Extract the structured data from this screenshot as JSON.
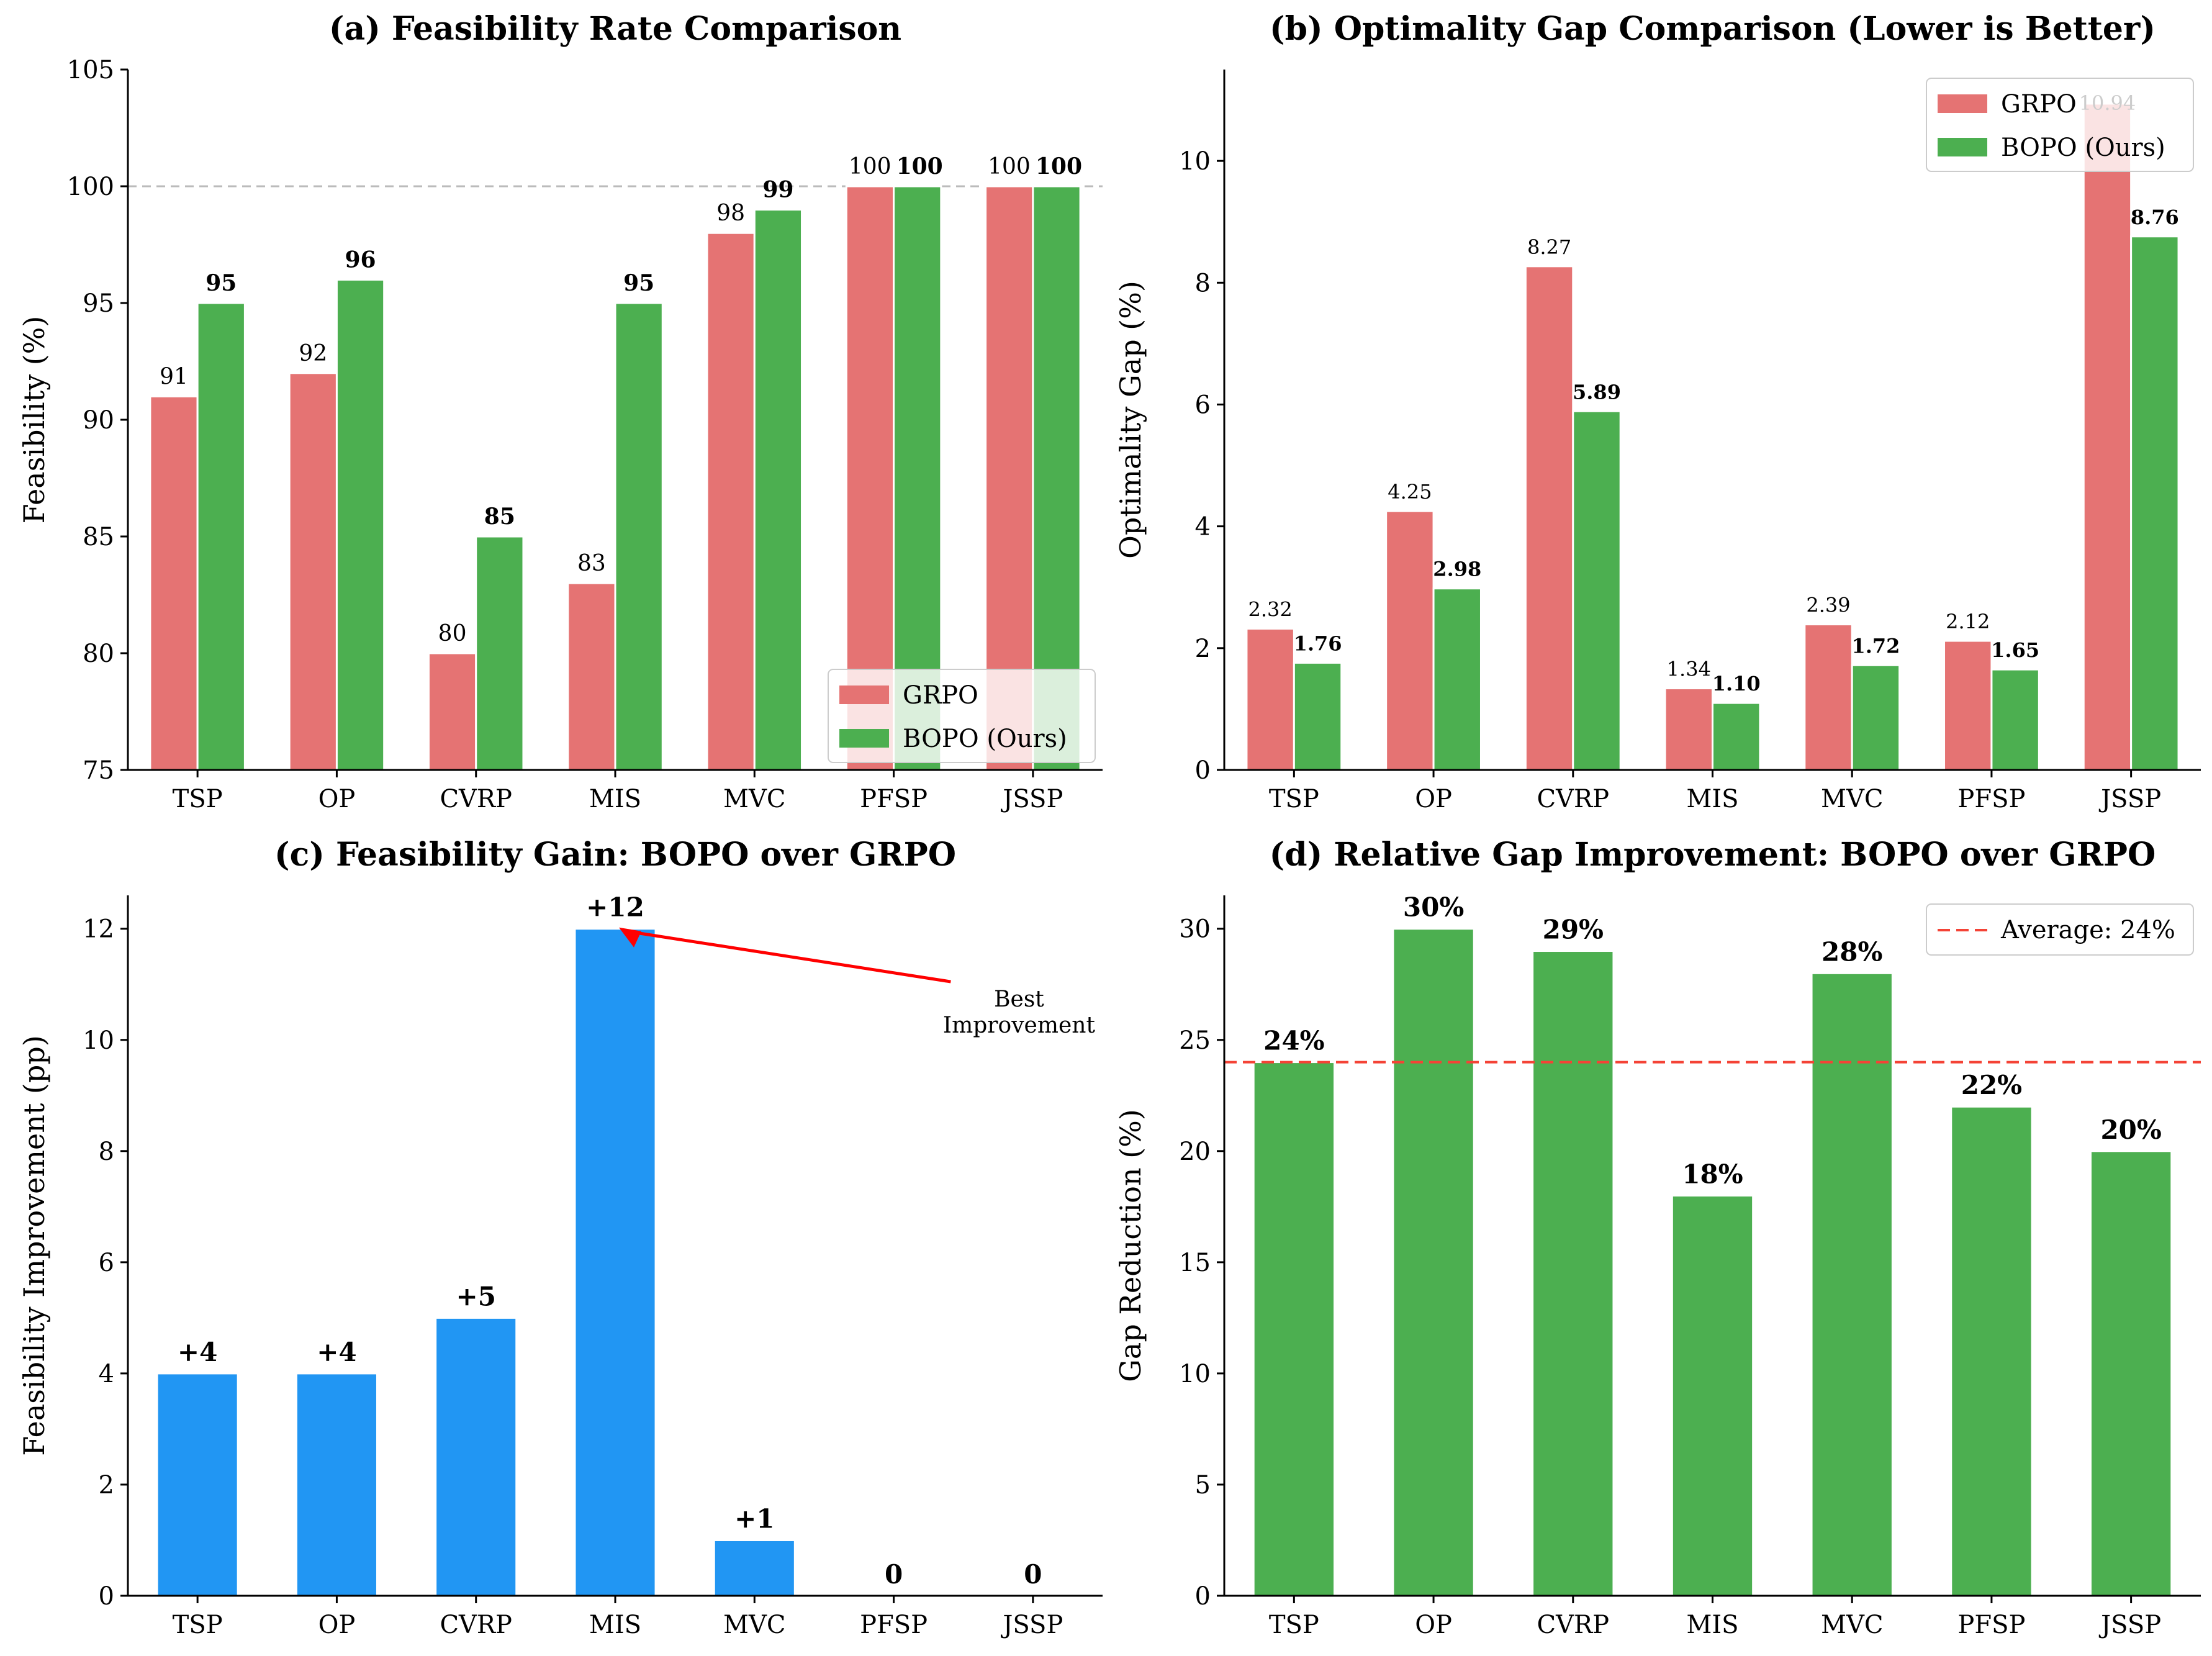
{
  "chart_data": [
    {
      "id": "a",
      "type": "bar",
      "title": "(a) Feasibility Rate Comparison",
      "xlabel": "",
      "ylabel": "Feasibility (%)",
      "ylim": [
        75,
        105
      ],
      "yticks": [
        75,
        80,
        85,
        90,
        95,
        100,
        105
      ],
      "categories": [
        "TSP",
        "OP",
        "CVRP",
        "MIS",
        "MVC",
        "PFSP",
        "JSSP"
      ],
      "series": [
        {
          "name": "GRPO",
          "color": "#e57373",
          "values": [
            91,
            92,
            80,
            83,
            98,
            100,
            100
          ],
          "labels": [
            "91",
            "92",
            "80",
            "83",
            "98",
            "100",
            "100"
          ]
        },
        {
          "name": "BOPO (Ours)",
          "color": "#4caf50",
          "values": [
            95,
            96,
            85,
            95,
            99,
            100,
            100
          ],
          "labels": [
            "95",
            "96",
            "85",
            "95",
            "99",
            "100",
            "100"
          ]
        }
      ],
      "reference_line": {
        "value": 100,
        "style": "dashed",
        "color": "#bbbbbb"
      },
      "legend": {
        "position": "lower-right",
        "entries": [
          "GRPO",
          "BOPO (Ours)"
        ]
      }
    },
    {
      "id": "b",
      "type": "bar",
      "title": "(b) Optimality Gap Comparison (Lower is Better)",
      "xlabel": "",
      "ylabel": "Optimality Gap (%)",
      "ylim": [
        0,
        11.5
      ],
      "yticks": [
        0,
        2,
        4,
        6,
        8,
        10
      ],
      "categories": [
        "TSP",
        "OP",
        "CVRP",
        "MIS",
        "MVC",
        "PFSP",
        "JSSP"
      ],
      "series": [
        {
          "name": "GRPO",
          "color": "#e57373",
          "values": [
            2.32,
            4.25,
            8.27,
            1.34,
            2.39,
            2.12,
            10.94
          ],
          "labels": [
            "2.32",
            "4.25",
            "8.27",
            "1.34",
            "2.39",
            "2.12",
            "10.94"
          ]
        },
        {
          "name": "BOPO (Ours)",
          "color": "#4caf50",
          "values": [
            1.76,
            2.98,
            5.89,
            1.1,
            1.72,
            1.65,
            8.76
          ],
          "labels": [
            "1.76",
            "2.98",
            "5.89",
            "1.10",
            "1.72",
            "1.65",
            "8.76"
          ]
        }
      ],
      "legend": {
        "position": "top-right",
        "entries": [
          "GRPO",
          "BOPO (Ours)"
        ]
      }
    },
    {
      "id": "c",
      "type": "bar",
      "title": "(c) Feasibility Gain: BOPO over GRPO",
      "xlabel": "",
      "ylabel": "Feasibility Improvement (pp)",
      "ylim": [
        0,
        12.6
      ],
      "yticks": [
        0,
        2,
        4,
        6,
        8,
        10,
        12
      ],
      "categories": [
        "TSP",
        "OP",
        "CVRP",
        "MIS",
        "MVC",
        "PFSP",
        "JSSP"
      ],
      "series": [
        {
          "name": "Improvement",
          "color": "#2196f3",
          "values": [
            4,
            4,
            5,
            12,
            1,
            0,
            0
          ],
          "labels": [
            "+4",
            "+4",
            "+5",
            "+12",
            "+1",
            "0",
            "0"
          ]
        }
      ],
      "annotation": {
        "text_lines": [
          "Best",
          "Improvement"
        ],
        "target_category": "MIS",
        "target_value": 12,
        "text_at": [
          5.9,
          10.6
        ],
        "color": "#ff0000"
      }
    },
    {
      "id": "d",
      "type": "bar",
      "title": "(d) Relative Gap Improvement: BOPO over GRPO",
      "xlabel": "",
      "ylabel": "Gap Reduction (%)",
      "ylim": [
        0,
        31.5
      ],
      "yticks": [
        0,
        5,
        10,
        15,
        20,
        25,
        30
      ],
      "categories": [
        "TSP",
        "OP",
        "CVRP",
        "MIS",
        "MVC",
        "PFSP",
        "JSSP"
      ],
      "series": [
        {
          "name": "Gap Reduction",
          "color": "#4caf50",
          "values": [
            24,
            30,
            29,
            18,
            28,
            22,
            20
          ],
          "labels": [
            "24%",
            "30%",
            "29%",
            "18%",
            "28%",
            "22%",
            "20%"
          ]
        }
      ],
      "reference_line": {
        "value": 24,
        "style": "dashed",
        "color": "#f44336"
      },
      "legend": {
        "position": "top-right",
        "entries": [
          "Average: 24%"
        ]
      }
    }
  ]
}
